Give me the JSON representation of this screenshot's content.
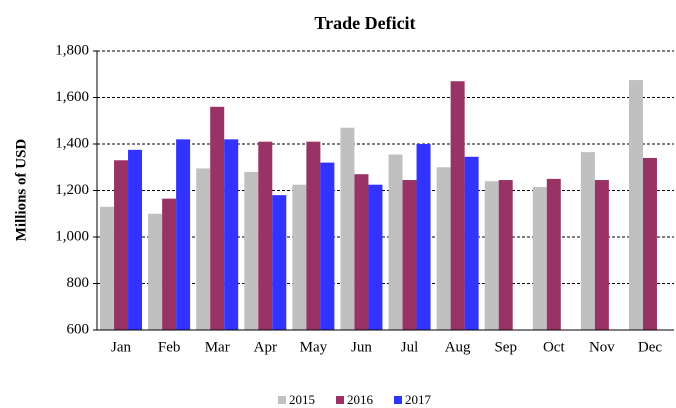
{
  "chart_data": {
    "type": "bar",
    "title": "Trade Deficit",
    "y_label": "Millions of USD",
    "categories": [
      "Jan",
      "Feb",
      "Mar",
      "Apr",
      "May",
      "Jun",
      "Jul",
      "Aug",
      "Sep",
      "Oct",
      "Nov",
      "Dec"
    ],
    "series": [
      {
        "name": "2015",
        "color": "#c0c0c0",
        "values": [
          1130,
          1100,
          1295,
          1280,
          1225,
          1470,
          1355,
          1300,
          1240,
          1215,
          1365,
          1675
        ]
      },
      {
        "name": "2016",
        "color": "#993366",
        "values": [
          1330,
          1165,
          1560,
          1410,
          1410,
          1270,
          1245,
          1670,
          1245,
          1250,
          1245,
          1340
        ]
      },
      {
        "name": "2017",
        "color": "#3333ff",
        "values": [
          1375,
          1420,
          1420,
          1180,
          1320,
          1225,
          1400,
          1345,
          null,
          null,
          null,
          null
        ]
      }
    ],
    "ylim": [
      600,
      1800
    ],
    "yticks": [
      600,
      800,
      {
        "value": 1000,
        "label": "1,000"
      },
      {
        "value": 1200,
        "label": "1,200"
      },
      {
        "value": 1400,
        "label": "1,400"
      },
      {
        "value": 1600,
        "label": "1,600"
      },
      {
        "value": 1800,
        "label": "1,800"
      }
    ],
    "grid": true
  }
}
